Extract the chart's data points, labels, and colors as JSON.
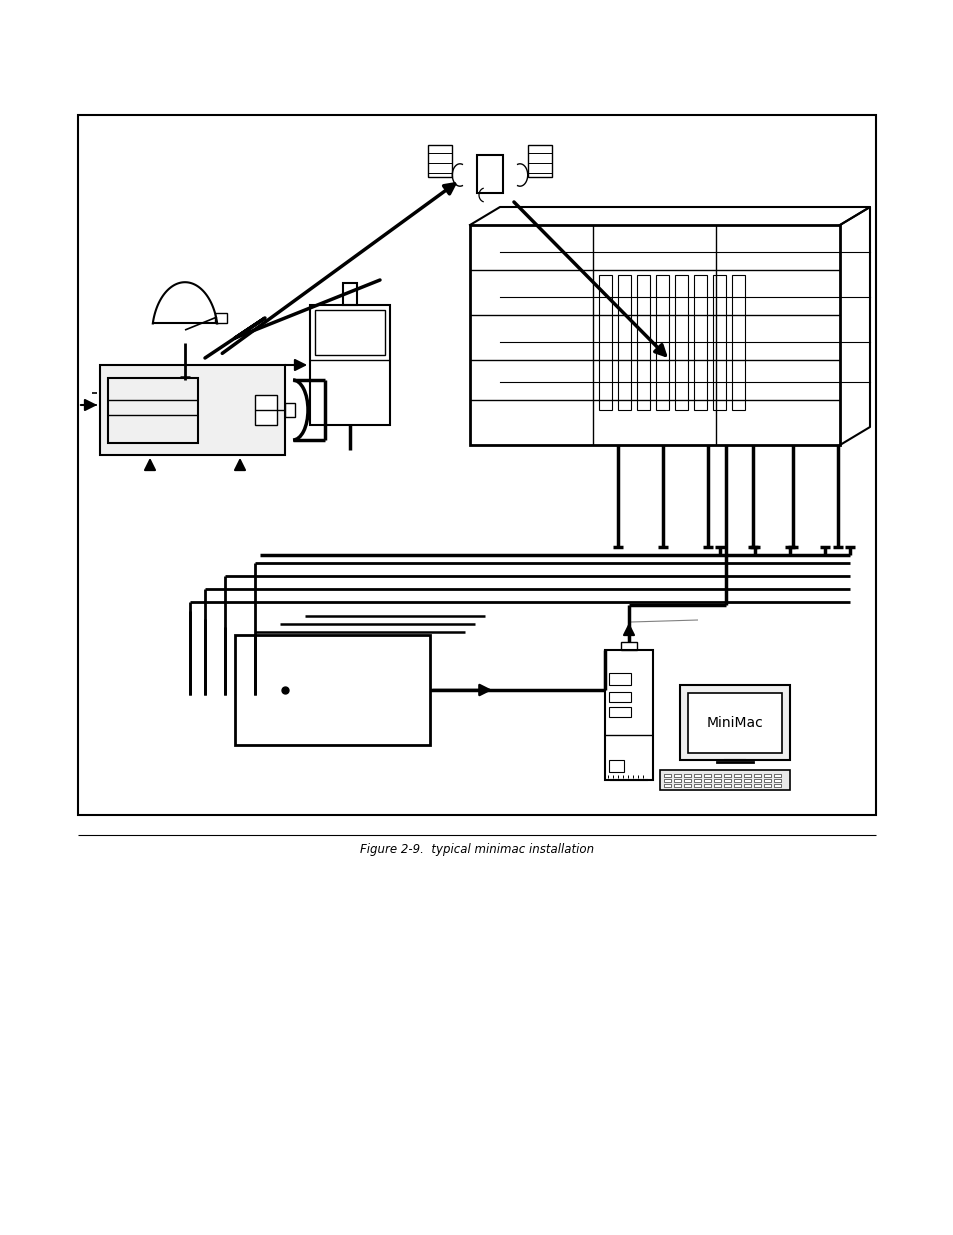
{
  "fig_width": 9.54,
  "fig_height": 12.35,
  "dpi": 100,
  "bg_color": "#ffffff",
  "line_color": "#000000",
  "caption": "Figure 2-9.  typical minimac installation",
  "minimac_label": "MiniMac"
}
